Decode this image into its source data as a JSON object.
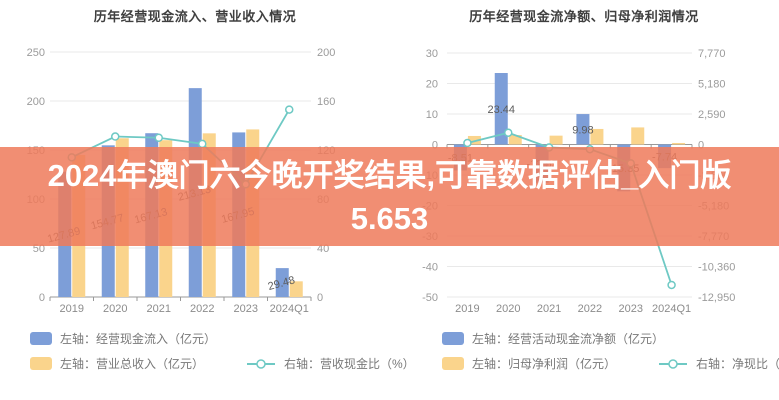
{
  "banner": {
    "line1": "2024年澳门六今晚开奖结果,可靠数据评估_入门版",
    "line2": "5.653"
  },
  "colors": {
    "bar_blue": "#7d9ed8",
    "bar_yellow": "#fad48c",
    "line_teal": "#6ec9c4",
    "banner_bg": "rgba(238,122,90,0.85)",
    "banner_text": "#ffffff",
    "grid": "#e9e9e9",
    "axis_line": "#999999",
    "tick_text": "#9b9b9b",
    "category_text": "#8c8c8c",
    "value_label_text": "#5c5c5c",
    "title_text": "#3f3f3f",
    "legend_text": "#787878"
  },
  "chart_data": [
    {
      "type": "bar",
      "title": "历年经营现金流入、营业收入情况",
      "categories": [
        "2019",
        "2020",
        "2021",
        "2022",
        "2023",
        "2024Q1"
      ],
      "series": [
        {
          "name": "左轴：经营现金流入（亿元）",
          "kind": "bar",
          "axis": "left",
          "color_key": "bar_blue",
          "values": [
            127.89,
            154.77,
            167.13,
            213.13,
            167.95,
            29.48
          ],
          "labels": [
            "127.89",
            "154.77",
            "167.13",
            "213.13",
            "167.95",
            "29.48"
          ]
        },
        {
          "name": "左轴：营业总收入（亿元）",
          "kind": "bar",
          "axis": "left",
          "color_key": "bar_yellow",
          "values": [
            145,
            162,
            160,
            167,
            171,
            16
          ]
        },
        {
          "name": "右轴：营收现金比（%）",
          "kind": "line",
          "axis": "right",
          "color_key": "line_teal",
          "values": [
            114,
            131,
            130,
            125,
            92,
            153
          ]
        }
      ],
      "left_axis": {
        "min": 0,
        "max": 250,
        "ticks": [
          "250",
          "200",
          "150",
          "100",
          "50",
          "0"
        ]
      },
      "right_axis": {
        "min": 0,
        "max": 200,
        "ticks": [
          "200",
          "160",
          "120",
          "80",
          "40",
          "0"
        ]
      },
      "grid": true,
      "legend_position": "bottom-left"
    },
    {
      "type": "bar",
      "title": "历年经营现金流净额、归母净利润情况",
      "categories": [
        "2019",
        "2020",
        "2021",
        "2022",
        "2023",
        "2024Q1"
      ],
      "series": [
        {
          "name": "左轴：经营活动现金流净额（亿元）",
          "kind": "bar",
          "axis": "left",
          "color_key": "bar_blue",
          "values": [
            -8.51,
            23.44,
            -12.55,
            9.98,
            -15.35,
            -7.74
          ],
          "labels": [
            "-8.51",
            "23.44",
            "-12.55",
            "9.98",
            "-15.35",
            "-7.74"
          ]
        },
        {
          "name": "左轴：归母净利润（亿元）",
          "kind": "bar",
          "axis": "left",
          "color_key": "bar_yellow",
          "values": [
            2.8,
            3.1,
            2.9,
            5.1,
            5.6,
            0.5
          ]
        },
        {
          "name": "右轴：净现比（%）",
          "kind": "line",
          "axis": "right",
          "color_key": "line_teal",
          "values": [
            130,
            1000,
            -250,
            -400,
            -1600,
            -11930
          ]
        }
      ],
      "left_axis": {
        "min": -50,
        "max": 30,
        "ticks": [
          "30",
          "20",
          "10",
          "0",
          "-10",
          "-20",
          "-30",
          "-40",
          "-50"
        ]
      },
      "right_axis": {
        "min": -12950,
        "max": 7770,
        "ticks": [
          "7,770",
          "5,180",
          "2,590",
          "0",
          "-2,590",
          "-5,180",
          "-7,770",
          "-10,360",
          "-12,950"
        ]
      },
      "grid": true,
      "legend_position": "bottom-left"
    }
  ]
}
